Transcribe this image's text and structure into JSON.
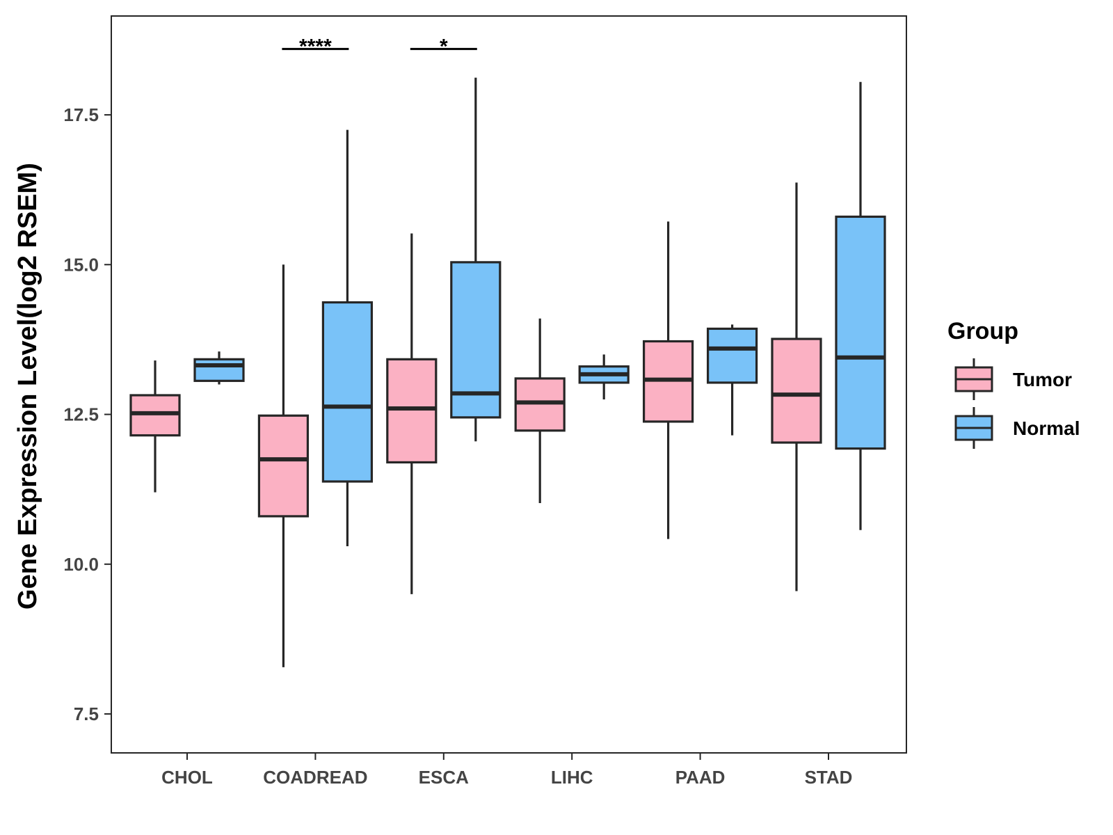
{
  "chart_data": {
    "type": "box",
    "title": "",
    "xlabel": "",
    "ylabel": "Gene Expression Level(log2 RSEM)",
    "ylim": [
      6.85,
      19.15
    ],
    "yticks": [
      7.5,
      10.0,
      12.5,
      15.0,
      17.5
    ],
    "ytick_labels": [
      "7.5",
      "10.0",
      "12.5",
      "15.0",
      "17.5"
    ],
    "categories": [
      "CHOL",
      "COADREAD",
      "ESCA",
      "LIHC",
      "PAAD",
      "STAD"
    ],
    "legend": {
      "title": "Group",
      "position": "right",
      "entries": [
        {
          "name": "Tumor",
          "color": "#fbb1c3"
        },
        {
          "name": "Normal",
          "color": "#79c2f8"
        }
      ]
    },
    "series": [
      {
        "name": "Tumor",
        "color": "#fbb1c3",
        "boxes": [
          {
            "category": "CHOL",
            "min": 11.2,
            "q1": 12.15,
            "median": 12.52,
            "q3": 12.82,
            "max": 13.4
          },
          {
            "category": "COADREAD",
            "min": 8.28,
            "q1": 10.8,
            "median": 11.75,
            "q3": 12.48,
            "max": 15.0
          },
          {
            "category": "ESCA",
            "min": 9.5,
            "q1": 11.7,
            "median": 12.6,
            "q3": 13.42,
            "max": 15.52
          },
          {
            "category": "LIHC",
            "min": 11.02,
            "q1": 12.23,
            "median": 12.7,
            "q3": 13.1,
            "max": 14.1
          },
          {
            "category": "PAAD",
            "min": 10.42,
            "q1": 12.38,
            "median": 13.08,
            "q3": 13.72,
            "max": 15.72
          },
          {
            "category": "STAD",
            "min": 9.55,
            "q1": 12.03,
            "median": 12.83,
            "q3": 13.76,
            "max": 16.37
          }
        ]
      },
      {
        "name": "Normal",
        "color": "#79c2f8",
        "boxes": [
          {
            "category": "CHOL",
            "min": 13.0,
            "q1": 13.06,
            "median": 13.32,
            "q3": 13.42,
            "max": 13.55
          },
          {
            "category": "COADREAD",
            "min": 10.3,
            "q1": 11.38,
            "median": 12.63,
            "q3": 14.37,
            "max": 17.25
          },
          {
            "category": "ESCA",
            "min": 12.05,
            "q1": 12.45,
            "median": 12.85,
            "q3": 15.04,
            "max": 18.12
          },
          {
            "category": "LIHC",
            "min": 12.75,
            "q1": 13.03,
            "median": 13.17,
            "q3": 13.3,
            "max": 13.5
          },
          {
            "category": "PAAD",
            "min": 12.15,
            "q1": 13.03,
            "median": 13.6,
            "q3": 13.93,
            "max": 14.0
          },
          {
            "category": "STAD",
            "min": 10.57,
            "q1": 11.93,
            "median": 13.45,
            "q3": 15.8,
            "max": 18.05
          }
        ]
      }
    ],
    "significance": [
      {
        "category": "COADREAD",
        "label": "****",
        "y": 18.6
      },
      {
        "category": "ESCA",
        "label": "*",
        "y": 18.6
      }
    ]
  }
}
